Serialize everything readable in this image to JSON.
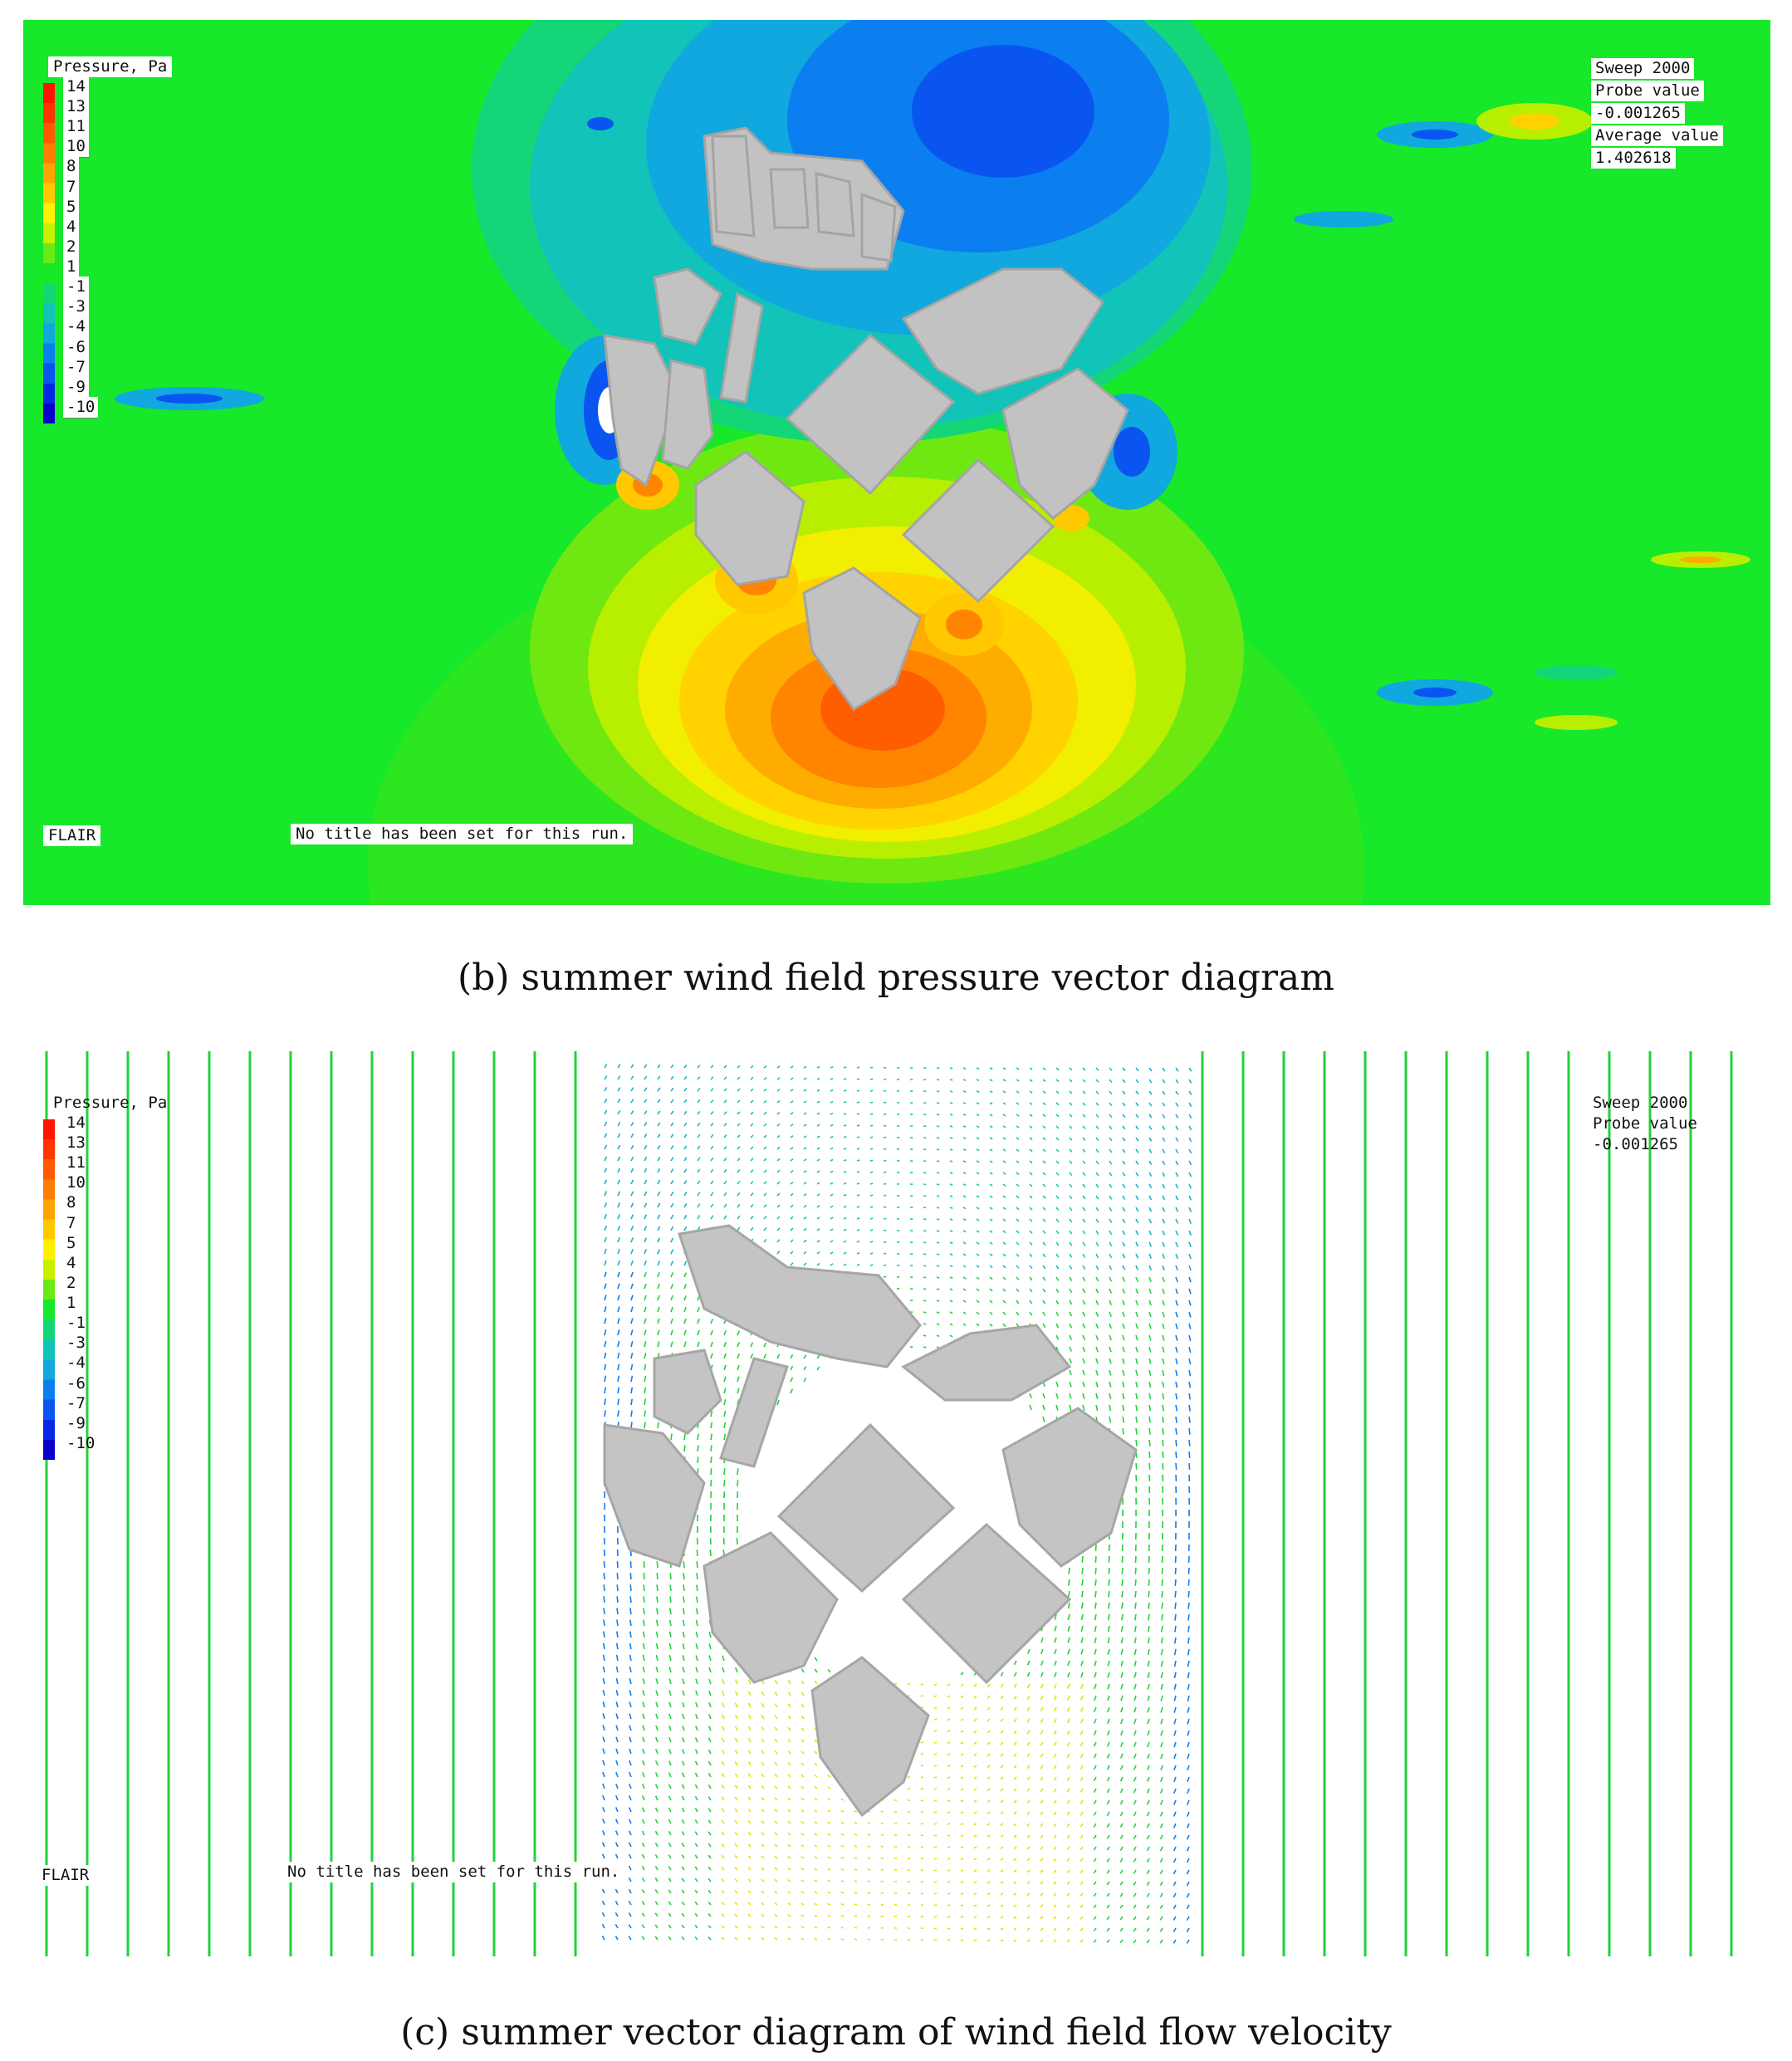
{
  "legend_title": "Pressure, Pa",
  "legend_ticks": [
    "14",
    "13",
    "11",
    "10",
    "8",
    "7",
    "5",
    "4",
    "2",
    "1",
    "-1",
    "-3",
    "-4",
    "-6",
    "-7",
    "-9",
    "-10"
  ],
  "legend_colors": [
    "#ff1600",
    "#ff3500",
    "#ff5a00",
    "#ff7d00",
    "#ffa300",
    "#ffc800",
    "#ffef00",
    "#c8f000",
    "#69ea14",
    "#17e82a",
    "#14d678",
    "#12c3b9",
    "#10a8de",
    "#0c7ff0",
    "#0a55f0",
    "#0626e8",
    "#0a00cc"
  ],
  "panel_b": {
    "sweep": "Sweep 2000",
    "probe_label": "Probe value",
    "probe_value": "-0.001265",
    "average_label": "Average value",
    "average_value": "1.402618",
    "flair": "FLAIR",
    "run_title": "No title has been set for this run."
  },
  "panel_c": {
    "sweep": "Sweep 2000",
    "probe_label": "Probe value",
    "probe_value": "-0.001265",
    "flair": "FLAIR",
    "run_title": "No title has been set for this run."
  },
  "captions": {
    "b": "(b) summer wind field pressure vector diagram",
    "c": "(c) summer vector diagram of wind field flow velocity"
  }
}
